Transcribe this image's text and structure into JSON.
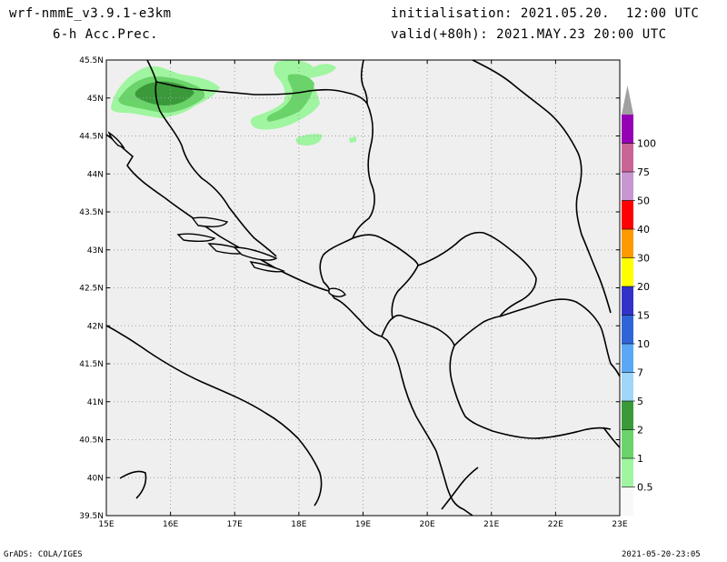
{
  "header": {
    "model": "wrf-nmmE_v3.9.1-e3km",
    "field": "6-h Acc.Prec.",
    "init": "initialisation: 2021.05.20.  12:00 UTC",
    "valid": "valid(+80h): 2021.MAY.23 20:00 UTC"
  },
  "footer": {
    "credit": "GrADS: COLA/IGES",
    "timestamp": "2021-05-20-23:05"
  },
  "colors": {
    "map_background": "#efefef",
    "grid": "#a0a0a0",
    "border": "#000000"
  },
  "map": {
    "lon_ticks": [
      "15E",
      "16E",
      "17E",
      "18E",
      "19E",
      "20E",
      "21E",
      "22E",
      "23E"
    ],
    "lat_ticks": [
      "45.5N",
      "45N",
      "44.5N",
      "44N",
      "43.5N",
      "43N",
      "42.5N",
      "42N",
      "41.5N",
      "41N",
      "40.5N",
      "40N",
      "39.5N"
    ]
  },
  "legend": [
    {
      "label": "",
      "color": "#f8f8f8"
    },
    {
      "label": "0.5",
      "color": "#a0f5a0"
    },
    {
      "label": "1",
      "color": "#6ad36a"
    },
    {
      "label": "2",
      "color": "#3a9a3a"
    },
    {
      "label": "5",
      "color": "#a0d6fa"
    },
    {
      "label": "7",
      "color": "#5aa8f5"
    },
    {
      "label": "10",
      "color": "#2f64d8"
    },
    {
      "label": "15",
      "color": "#3232c8"
    },
    {
      "label": "20",
      "color": "#ffff00"
    },
    {
      "label": "30",
      "color": "#ff9900"
    },
    {
      "label": "40",
      "color": "#ff0000"
    },
    {
      "label": "50",
      "color": "#c896d2"
    },
    {
      "label": "75",
      "color": "#c86496"
    },
    {
      "label": "100",
      "color": "#9600b4"
    }
  ]
}
